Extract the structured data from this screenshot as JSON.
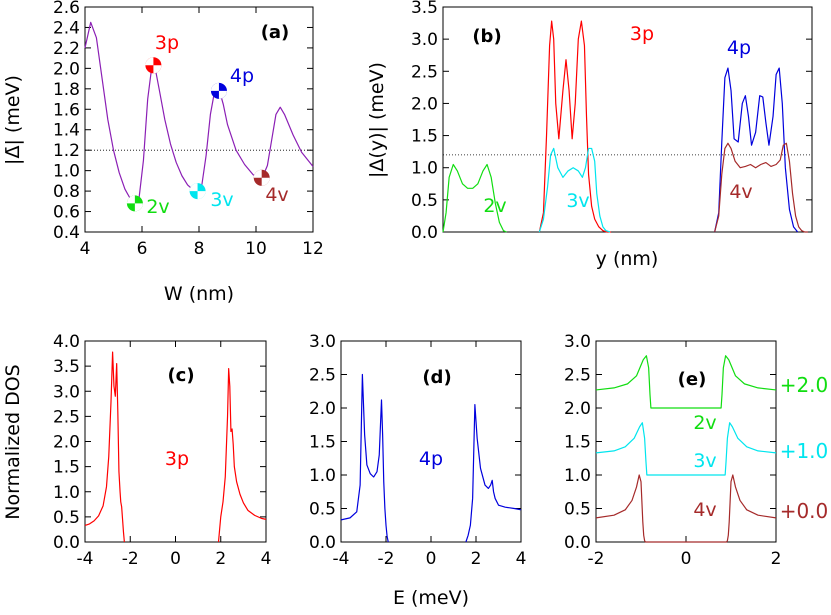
{
  "chart_data": [
    {
      "panel": "(a)",
      "type": "line",
      "xlabel": "W (nm)",
      "ylabel": "|Δ̄| (meV)",
      "xlim": [
        4,
        12
      ],
      "ylim": [
        0.4,
        2.6
      ],
      "xticks": [
        "4",
        "6",
        "8",
        "10",
        "12"
      ],
      "yticks": [
        "0.4",
        "0.6",
        "0.8",
        "1.0",
        "1.2",
        "1.4",
        "1.6",
        "1.8",
        "2.0",
        "2.2",
        "2.4",
        "2.6"
      ],
      "hline": 1.2,
      "series": [
        {
          "color": "#8b1fb5",
          "x": [
            4.0,
            4.2,
            4.4,
            4.6,
            4.8,
            5.0,
            5.2,
            5.4,
            5.6,
            5.75,
            5.9,
            6.05,
            6.2,
            6.35,
            6.45,
            6.6,
            6.8,
            7.0,
            7.2,
            7.4,
            7.6,
            7.8,
            7.95,
            8.1,
            8.25,
            8.4,
            8.55,
            8.7,
            8.85,
            9.0,
            9.3,
            9.6,
            9.9,
            10.1,
            10.25,
            10.4,
            10.55,
            10.7,
            10.85,
            11.0,
            11.3,
            11.6,
            12.0
          ],
          "y": [
            2.2,
            2.45,
            2.3,
            1.9,
            1.5,
            1.2,
            0.98,
            0.82,
            0.72,
            0.68,
            0.74,
            1.1,
            1.7,
            2.03,
            2.02,
            1.8,
            1.5,
            1.26,
            1.08,
            0.95,
            0.86,
            0.81,
            0.8,
            0.86,
            1.15,
            1.55,
            1.78,
            1.8,
            1.65,
            1.45,
            1.2,
            1.06,
            0.96,
            0.93,
            0.95,
            1.05,
            1.3,
            1.55,
            1.62,
            1.55,
            1.35,
            1.18,
            1.04
          ]
        }
      ],
      "annotations": [
        {
          "text": "(a)"
        },
        {
          "text": "3p",
          "x": 6.4,
          "y": 2.03,
          "color": "#ff0000"
        },
        {
          "text": "4p",
          "x": 8.7,
          "y": 1.78,
          "color": "#0000dd"
        },
        {
          "text": "2v",
          "x": 5.75,
          "y": 0.68,
          "color": "#11dd11"
        },
        {
          "text": "3v",
          "x": 7.95,
          "y": 0.8,
          "color": "#00e5ee"
        },
        {
          "text": "4v",
          "x": 10.2,
          "y": 0.93,
          "color": "#a52a2a"
        }
      ]
    },
    {
      "panel": "(b)",
      "type": "line",
      "xlabel": "y (nm)",
      "ylabel": "|Δ(y)| (meV)",
      "xlim": [
        0,
        36
      ],
      "ylim": [
        0,
        3.5
      ],
      "yticks": [
        "0.0",
        "0.5",
        "1.0",
        "1.5",
        "2.0",
        "2.5",
        "3.0",
        "3.5"
      ],
      "hline": 1.2,
      "series": [
        {
          "name": "2v",
          "color": "#11dd11",
          "x": [
            0.0,
            0.3,
            0.6,
            1.0,
            1.4,
            1.9,
            2.4,
            2.9,
            3.4,
            3.9,
            4.3,
            4.7,
            5.1,
            5.5,
            5.9,
            6.2
          ],
          "y": [
            0.0,
            0.3,
            0.85,
            1.05,
            0.95,
            0.75,
            0.68,
            0.68,
            0.75,
            0.95,
            1.05,
            0.85,
            0.45,
            0.15,
            0.02,
            0.0
          ]
        },
        {
          "name": "3p",
          "color": "#ff0000",
          "x": [
            9.4,
            9.8,
            10.1,
            10.4,
            10.6,
            10.8,
            11.0,
            11.3,
            11.7,
            12.0,
            12.3,
            12.6,
            12.9,
            13.2,
            13.5,
            13.8,
            14.0,
            14.2,
            14.5,
            14.8,
            15.2,
            15.6,
            16.0,
            16.4
          ],
          "y": [
            0.0,
            0.3,
            1.5,
            2.9,
            3.28,
            3.0,
            2.0,
            1.45,
            2.2,
            2.68,
            2.2,
            1.45,
            2.0,
            3.0,
            3.28,
            2.9,
            1.8,
            0.9,
            0.4,
            0.2,
            0.08,
            0.02,
            0.0,
            0.0
          ]
        },
        {
          "name": "3v",
          "color": "#00e5ee",
          "x": [
            9.4,
            9.8,
            10.2,
            10.5,
            10.8,
            11.2,
            11.7,
            12.2,
            12.7,
            13.2,
            13.6,
            13.9,
            14.2,
            14.5,
            14.8,
            15.0,
            15.3,
            15.6,
            15.9,
            16.3
          ],
          "y": [
            0.0,
            0.2,
            0.7,
            1.2,
            1.3,
            1.0,
            0.85,
            0.95,
            1.0,
            0.95,
            0.85,
            1.0,
            1.3,
            1.3,
            1.1,
            0.6,
            0.25,
            0.08,
            0.02,
            0.0
          ]
        },
        {
          "name": "4p",
          "color": "#0000dd",
          "x": [
            26.5,
            26.9,
            27.2,
            27.5,
            27.8,
            28.1,
            28.4,
            28.8,
            29.2,
            29.5,
            29.8,
            30.1,
            30.5,
            30.9,
            31.2,
            31.5,
            31.8,
            32.2,
            32.5,
            32.8,
            33.1,
            33.4,
            33.8,
            34.2,
            34.6
          ],
          "y": [
            0.0,
            0.3,
            1.4,
            2.4,
            2.55,
            2.2,
            1.45,
            1.4,
            2.0,
            2.12,
            1.8,
            1.35,
            1.55,
            2.12,
            2.1,
            1.7,
            1.35,
            1.8,
            2.45,
            2.55,
            2.0,
            1.0,
            0.35,
            0.08,
            0.0
          ]
        },
        {
          "name": "4v",
          "color": "#a52a2a",
          "x": [
            26.5,
            26.9,
            27.2,
            27.5,
            27.8,
            28.1,
            28.5,
            29.0,
            29.5,
            30.0,
            30.5,
            31.0,
            31.5,
            32.0,
            32.5,
            32.9,
            33.2,
            33.5,
            33.8,
            34.1,
            34.4,
            34.7,
            35.0,
            35.3,
            35.6
          ],
          "y": [
            0.0,
            0.25,
            0.9,
            1.3,
            1.38,
            1.3,
            1.1,
            1.0,
            1.02,
            1.05,
            1.0,
            1.05,
            1.08,
            1.02,
            1.05,
            1.12,
            1.35,
            1.38,
            1.1,
            0.6,
            0.25,
            0.08,
            0.02,
            0.0,
            0.0
          ]
        }
      ],
      "annotations": [
        {
          "text": "(b)"
        },
        {
          "text": "3p",
          "color": "#ff0000"
        },
        {
          "text": "4p",
          "color": "#0000dd"
        },
        {
          "text": "2v",
          "color": "#11dd11"
        },
        {
          "text": "3v",
          "color": "#00e5ee"
        },
        {
          "text": "4v",
          "color": "#a52a2a"
        }
      ]
    },
    {
      "panel": "(c)",
      "type": "line",
      "ylabel": "Normalized DOS",
      "xlim": [
        -4,
        4
      ],
      "ylim": [
        0,
        4.0
      ],
      "xticks": [
        "-4",
        "-2",
        "0",
        "2",
        "4"
      ],
      "yticks": [
        "0.0",
        "0.5",
        "1.0",
        "1.5",
        "2.0",
        "2.5",
        "3.0",
        "3.5",
        "4.0"
      ],
      "series": [
        {
          "name": "3p",
          "color": "#ff0000",
          "segments": [
            {
              "x": [
                -4.0,
                -3.8,
                -3.6,
                -3.4,
                -3.2,
                -3.05,
                -2.95,
                -2.85,
                -2.78,
                -2.72,
                -2.66,
                -2.6,
                -2.55,
                -2.5,
                -2.45,
                -2.42,
                -2.38,
                -2.34,
                -2.3,
                -2.26
              ],
              "y": [
                0.33,
                0.36,
                0.42,
                0.52,
                0.72,
                1.1,
                1.7,
                2.8,
                3.78,
                3.1,
                2.9,
                3.55,
                2.6,
                1.4,
                1.0,
                0.8,
                0.7,
                0.45,
                0.2,
                0.0
              ]
            },
            {
              "x": [
                1.9,
                1.95,
                2.0,
                2.1,
                2.2,
                2.3,
                2.35,
                2.4,
                2.45,
                2.5,
                2.55,
                2.6,
                2.7,
                2.85,
                3.0,
                3.2,
                3.5,
                3.8,
                4.0
              ],
              "y": [
                0.0,
                0.25,
                0.5,
                0.8,
                1.3,
                2.5,
                3.45,
                3.1,
                2.2,
                2.25,
                1.95,
                1.5,
                1.2,
                0.95,
                0.78,
                0.63,
                0.53,
                0.47,
                0.45
              ]
            }
          ]
        }
      ],
      "annotations": [
        {
          "text": "(c)"
        },
        {
          "text": "3p",
          "color": "#ff0000"
        }
      ]
    },
    {
      "panel": "(d)",
      "type": "line",
      "xlabel": "E (meV)",
      "xlim": [
        -4,
        4
      ],
      "ylim": [
        0,
        3.0
      ],
      "xticks": [
        "-4",
        "-2",
        "0",
        "2",
        "4"
      ],
      "yticks": [
        "0.0",
        "0.5",
        "1.0",
        "1.5",
        "2.0",
        "2.5",
        "3.0"
      ],
      "series": [
        {
          "name": "4p",
          "color": "#0000dd",
          "segments": [
            {
              "x": [
                -4.0,
                -3.6,
                -3.3,
                -3.15,
                -3.05,
                -2.95,
                -2.85,
                -2.7,
                -2.55,
                -2.4,
                -2.3,
                -2.2,
                -2.15,
                -2.1,
                -2.05,
                -2.0,
                -1.95,
                -1.9
              ],
              "y": [
                0.33,
                0.36,
                0.45,
                0.85,
                2.5,
                1.6,
                1.15,
                1.02,
                0.97,
                1.05,
                1.3,
                2.12,
                1.6,
                0.9,
                0.5,
                0.25,
                0.08,
                0.0
              ]
            },
            {
              "x": [
                1.55,
                1.65,
                1.75,
                1.85,
                1.95,
                2.05,
                2.2,
                2.4,
                2.55,
                2.65,
                2.72,
                2.78,
                2.85,
                3.0,
                3.3,
                3.7,
                4.0
              ],
              "y": [
                0.0,
                0.1,
                0.25,
                0.65,
                2.05,
                1.55,
                1.1,
                0.85,
                0.8,
                0.85,
                0.92,
                0.75,
                0.65,
                0.55,
                0.52,
                0.5,
                0.48
              ]
            }
          ]
        }
      ],
      "annotations": [
        {
          "text": "(d)"
        },
        {
          "text": "4p",
          "color": "#0000dd"
        }
      ]
    },
    {
      "panel": "(e)",
      "type": "line",
      "xlim": [
        -2,
        2
      ],
      "ylim": [
        0,
        3.0
      ],
      "xticks": [
        "-2",
        "0",
        "2"
      ],
      "yticks": [
        "0.0",
        "0.5",
        "1.0",
        "1.5",
        "2.0",
        "2.5",
        "3.0"
      ],
      "series": [
        {
          "name": "2v",
          "color": "#11dd11",
          "offset_label": "+2.0",
          "x": [
            -2.0,
            -1.6,
            -1.3,
            -1.1,
            -0.95,
            -0.88,
            -0.83,
            -0.8,
            -0.78,
            -0.77,
            0.77,
            0.78,
            0.8,
            0.83,
            0.88,
            0.95,
            1.1,
            1.3,
            1.6,
            2.0
          ],
          "y": [
            2.27,
            2.3,
            2.36,
            2.48,
            2.72,
            2.78,
            2.6,
            2.2,
            2.0,
            2.0,
            2.0,
            2.0,
            2.2,
            2.6,
            2.78,
            2.72,
            2.48,
            2.36,
            2.3,
            2.27
          ]
        },
        {
          "name": "3v",
          "color": "#00e5ee",
          "offset_label": "+1.0",
          "x": [
            -2.0,
            -1.6,
            -1.35,
            -1.15,
            -1.03,
            -0.97,
            -0.92,
            -0.89,
            -0.87,
            -0.86,
            0.86,
            0.87,
            0.89,
            0.92,
            0.97,
            1.03,
            1.15,
            1.35,
            1.6,
            2.0
          ],
          "y": [
            1.33,
            1.36,
            1.42,
            1.55,
            1.72,
            1.78,
            1.55,
            1.2,
            1.0,
            1.0,
            1.0,
            1.0,
            1.2,
            1.55,
            1.78,
            1.72,
            1.55,
            1.42,
            1.36,
            1.33
          ]
        },
        {
          "name": "4v",
          "color": "#a52a2a",
          "offset_label": "+0.0",
          "x": [
            -2.0,
            -1.6,
            -1.35,
            -1.2,
            -1.1,
            -1.04,
            -1.0,
            -0.98,
            -0.96,
            -0.94,
            -0.92,
            -0.9,
            0.9,
            0.92,
            0.94,
            0.96,
            0.98,
            1.0,
            1.04,
            1.1,
            1.2,
            1.35,
            1.6,
            2.0
          ],
          "y": [
            0.36,
            0.4,
            0.48,
            0.62,
            0.82,
            1.0,
            0.9,
            0.6,
            0.3,
            0.1,
            0.02,
            0.0,
            0.0,
            0.02,
            0.1,
            0.3,
            0.6,
            0.9,
            1.0,
            0.82,
            0.62,
            0.48,
            0.4,
            0.36
          ]
        }
      ],
      "annotations": [
        {
          "text": "(e)"
        },
        {
          "text": "2v",
          "color": "#11dd11"
        },
        {
          "text": "3v",
          "color": "#00e5ee"
        },
        {
          "text": "4v",
          "color": "#a52a2a"
        },
        {
          "text": "+2.0",
          "color": "#11dd11"
        },
        {
          "text": "+1.0",
          "color": "#00e5ee"
        },
        {
          "text": "+0.0",
          "color": "#a52a2a"
        }
      ]
    }
  ]
}
